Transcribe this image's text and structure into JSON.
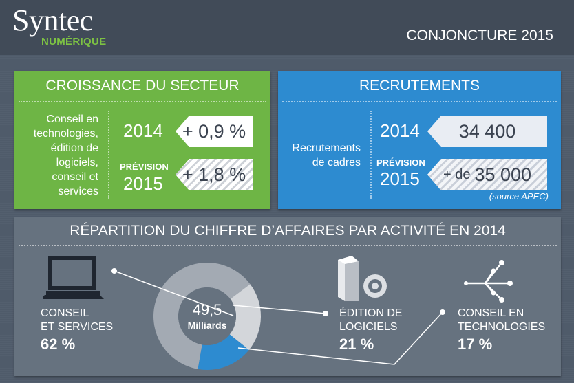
{
  "header": {
    "logo_main": "Syntec",
    "logo_sub": "NUMÉRIQUE",
    "title": "CONJONCTURE 2015"
  },
  "croissance": {
    "title": "CROISSANCE DU SECTEUR",
    "description_lines": [
      "Conseil en",
      "technologies,",
      "édition de",
      "logiciels,",
      "conseil et",
      "services"
    ],
    "year_1": "2014",
    "value_1": "+ 0,9 %",
    "prevision": "PRÉVISION",
    "year_2": "2015",
    "value_2": "+ 1,8 %"
  },
  "recrutements": {
    "title": "RECRUTEMENTS",
    "description_lines": [
      "Recrutements",
      "de cadres"
    ],
    "year_1": "2014",
    "value_1": "34 400",
    "prevision": "PRÉVISION",
    "year_2": "2015",
    "value_2_prefix": "+ de",
    "value_2": "35 000",
    "source": "(source APEC)"
  },
  "repartition": {
    "title": "RÉPARTITION DU CHIFFRE D’AFFAIRES PAR ACTIVITÉ EN 2014",
    "center_value": "49,5",
    "center_unit": "Milliards",
    "activities": [
      {
        "label_lines": [
          "CONSEIL",
          "ET SERVICES"
        ],
        "pct": "62 %",
        "icon": "laptop-icon"
      },
      {
        "label_lines": [
          "ÉDITION DE",
          "LOGICIELS"
        ],
        "pct": "21 %",
        "icon": "software-box-icon"
      },
      {
        "label_lines": [
          "CONSEIL EN",
          "TECHNOLOGIES"
        ],
        "pct": "17 %",
        "icon": "network-icon"
      }
    ]
  },
  "chart_data": {
    "type": "pie",
    "title": "RÉPARTITION DU CHIFFRE D’AFFAIRES PAR ACTIVITÉ EN 2014",
    "categories": [
      "CONSEIL ET SERVICES",
      "ÉDITION DE LOGICIELS",
      "CONSEIL EN TECHNOLOGIES"
    ],
    "values": [
      62,
      21,
      17
    ],
    "colors": [
      "#a3aab3",
      "#d3d6da",
      "#2d8bd0"
    ],
    "total_label": "49,5 Milliards"
  }
}
